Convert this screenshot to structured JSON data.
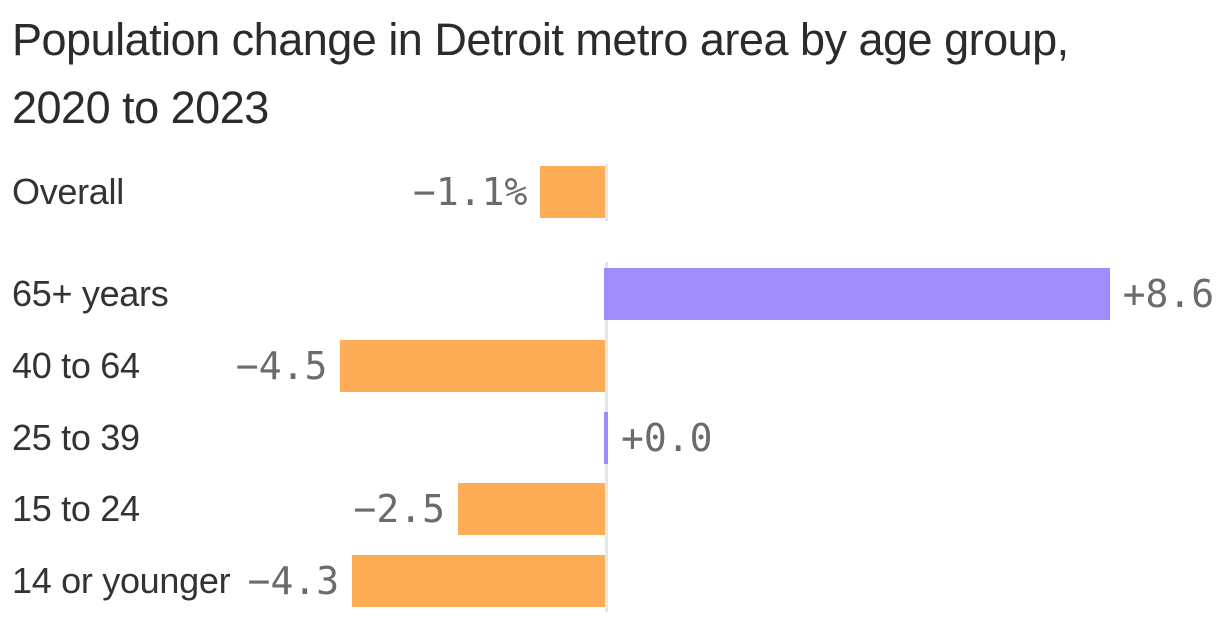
{
  "title": "Population change in Detroit metro area by age group, 2020 to 2023",
  "colors": {
    "positive_bar": "#a28bfa",
    "negative_bar": "#fcad55",
    "title_text": "#2b2b2b",
    "label_text": "#333333",
    "value_text": "#6b6b6b",
    "zero_baseline": "#e8e5e2",
    "background": "#ffffff"
  },
  "chart_data": {
    "type": "bar",
    "orientation": "horizontal",
    "title": "Population change in Detroit metro area by age group, 2020 to 2023",
    "unit": "percent",
    "baseline": 0,
    "xlim": [
      -4.5,
      8.6
    ],
    "grid": false,
    "legend": false,
    "rows": [
      {
        "label": "Overall",
        "value": -1.1,
        "display": "−1.1%",
        "group": "summary"
      },
      {
        "label": "65+ years",
        "value": 8.6,
        "display": "+8.6",
        "group": "age"
      },
      {
        "label": "40 to 64",
        "value": -4.5,
        "display": "−4.5",
        "group": "age"
      },
      {
        "label": "25 to 39",
        "value": 0.0,
        "display": "+0.0",
        "group": "age"
      },
      {
        "label": "15 to 24",
        "value": -2.5,
        "display": "−2.5",
        "group": "age"
      },
      {
        "label": "14 or younger",
        "value": -4.3,
        "display": "−4.3",
        "group": "age"
      }
    ]
  }
}
